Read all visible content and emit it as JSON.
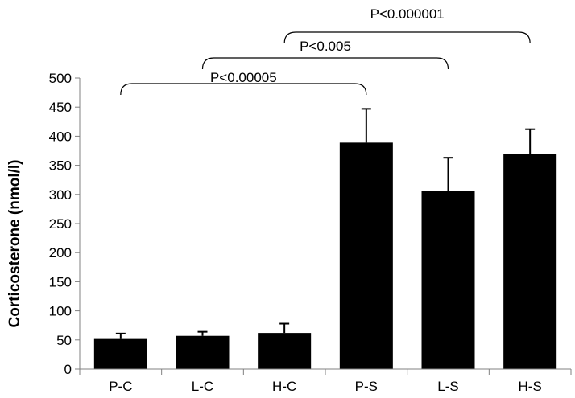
{
  "chart_data": {
    "type": "bar",
    "categories": [
      "P-C",
      "L-C",
      "H-C",
      "P-S",
      "L-S",
      "H-S"
    ],
    "values": [
      53,
      57,
      62,
      389,
      306,
      370
    ],
    "errors": [
      8,
      7,
      16,
      58,
      57,
      42
    ],
    "ylabel": "Corticosterone (nmol/l)",
    "ylim": [
      0,
      500
    ],
    "yticks": [
      0,
      50,
      100,
      150,
      200,
      250,
      300,
      350,
      400,
      450,
      500
    ],
    "bar_color": "#000000",
    "grid": false,
    "comparisons": [
      {
        "from": "P-C",
        "to": "P-S",
        "label": "P<0.00005"
      },
      {
        "from": "L-C",
        "to": "L-S",
        "label": "P<0.005"
      },
      {
        "from": "H-C",
        "to": "H-S",
        "label": "P<0.000001"
      }
    ]
  }
}
